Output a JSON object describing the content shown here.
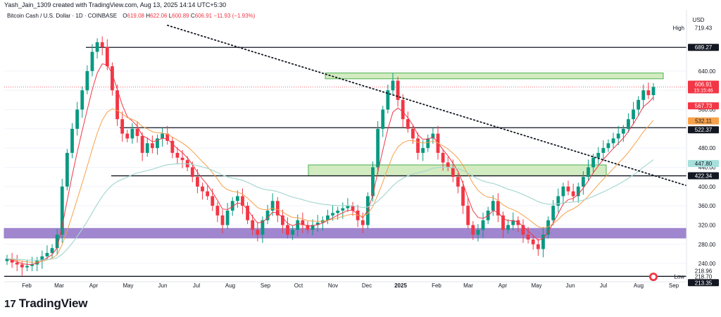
{
  "header": {
    "author_line": "Yash_Jain_1309 created with TradingView.com, Aug 13, 2025 14:14 UTC+5:30"
  },
  "symbol": {
    "name": "Bitcoin Cash / U.S. Dollar · 1D · COINBASE",
    "o_label": "O",
    "o_value": "619.08",
    "h_label": "H",
    "h_value": "622.06",
    "l_label": "L",
    "l_value": "600.89",
    "c_label": "C",
    "c_value": "606.91",
    "change": "−11.93 (−1.93%)"
  },
  "currency": "USD",
  "footer": {
    "brand": "TradingView",
    "mark": "17"
  },
  "colors": {
    "up": "#089981",
    "down": "#f23645",
    "ema_fast": "#f23645",
    "ema_mid": "#f7a14a",
    "ema_slow": "#a7d8d1",
    "zone_green": "#c8e6b0",
    "zone_purple": "#9b7fcb"
  },
  "chart_data": {
    "type": "candlestick",
    "x_ticks": [
      "Feb",
      "Mar",
      "Apr",
      "May",
      "Jun",
      "Jul",
      "Aug",
      "Sep",
      "Oct",
      "Nov",
      "Dec",
      "2025",
      "Feb",
      "Mar",
      "Apr",
      "May",
      "Jun",
      "Jul",
      "Aug",
      "Sep"
    ],
    "y_ticks": [
      "640.00",
      "600.00",
      "560.00",
      "520.00",
      "480.00",
      "440.00",
      "400.00",
      "360.00",
      "320.00",
      "280.00",
      "240.00"
    ],
    "ylim": [
      205,
      735
    ],
    "price_labels": [
      {
        "text": "High",
        "value": "719.43",
        "price": 719.43,
        "style": "plain"
      },
      {
        "text": "",
        "value": "689.27",
        "price": 689.27,
        "style": "black"
      },
      {
        "text": "",
        "value": "606.91",
        "price": 606.91,
        "style": "red",
        "sub": "15:15:46"
      },
      {
        "text": "",
        "value": "567.73",
        "price": 567.73,
        "style": "red2"
      },
      {
        "text": "",
        "value": "532.11",
        "price": 532.11,
        "style": "orange"
      },
      {
        "text": "",
        "value": "522.37",
        "price": 522.37,
        "style": "black"
      },
      {
        "text": "",
        "value": "447.80",
        "price": 447.8,
        "style": "teal"
      },
      {
        "text": "",
        "value": "422.34",
        "price": 422.34,
        "style": "black"
      },
      {
        "text": "",
        "value": "218.96",
        "price": 218.96,
        "style": "plain"
      },
      {
        "text": "Low",
        "value": "218.70",
        "price": 218.7,
        "style": "plain"
      },
      {
        "text": "",
        "value": "213.35",
        "price": 213.35,
        "style": "black"
      }
    ],
    "horizontal_lines": [
      689.27,
      522.37,
      422.34,
      213.35
    ],
    "zones": [
      {
        "color": "green",
        "from": 624,
        "to": 636
      },
      {
        "color": "green",
        "from": 422.34,
        "to": 445
      },
      {
        "color": "purple",
        "from": 293,
        "to": 313
      }
    ],
    "trendline": {
      "from_price": 735,
      "to_price": 402
    },
    "close_series": [
      250,
      242,
      238,
      232,
      235,
      238,
      246,
      255,
      262,
      272,
      300,
      400,
      470,
      520,
      560,
      600,
      640,
      680,
      700,
      690,
      650,
      600,
      540,
      510,
      500,
      520,
      505,
      470,
      490,
      480,
      500,
      510,
      495,
      470,
      460,
      455,
      440,
      420,
      400,
      390,
      380,
      360,
      340,
      320,
      350,
      370,
      380,
      360,
      330,
      310,
      300,
      330,
      350,
      370,
      340,
      320,
      300,
      310,
      330,
      320,
      310,
      320,
      325,
      330,
      340,
      345,
      350,
      355,
      360,
      350,
      330,
      320,
      380,
      440,
      520,
      560,
      600,
      620,
      580,
      540,
      520,
      500,
      470,
      480,
      500,
      510,
      470,
      450,
      440,
      420,
      400,
      360,
      320,
      300,
      310,
      330,
      350,
      370,
      340,
      310,
      320,
      330,
      320,
      300,
      290,
      280,
      270,
      300,
      330,
      360,
      380,
      400,
      390,
      380,
      400,
      420,
      440,
      460,
      470,
      480,
      490,
      500,
      510,
      520,
      540,
      560,
      580,
      600,
      590,
      607
    ]
  }
}
